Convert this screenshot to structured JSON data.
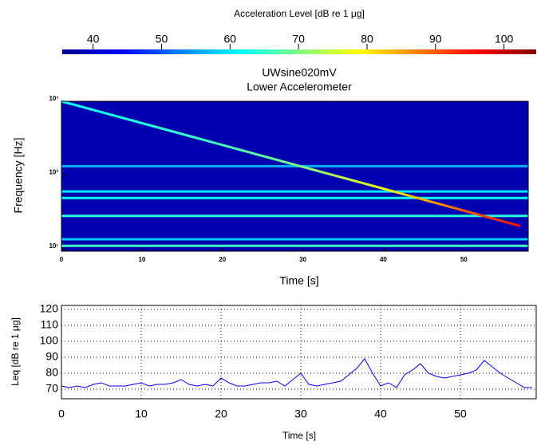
{
  "chart_data": [
    {
      "type": "colorbar",
      "title": "Acceleration Level  [dB re 1 μg]",
      "xlim": [
        35.5,
        104.7
      ],
      "xticks": [
        40,
        50,
        60,
        70,
        80,
        90,
        100
      ],
      "colormap": [
        "#00008f",
        "#0000ff",
        "#0080ff",
        "#00ffff",
        "#80ff80",
        "#ffff00",
        "#ff8000",
        "#ff0000",
        "#800000"
      ]
    },
    {
      "type": "spectrogram",
      "title": "UWsine020mV",
      "subtitle": "Lower Accelerometer",
      "x_label": "Time   [s]",
      "y_label": "Frequency   [Hz]",
      "xlim": [
        0,
        58
      ],
      "xticks": [
        0,
        10,
        20,
        30,
        40,
        50
      ],
      "ylim": [
        9.3,
        1000
      ],
      "log_y": true,
      "yticks": [
        {
          "value": 10,
          "label": "10¹"
        },
        {
          "value": 100,
          "label": "10²"
        },
        {
          "value": 1000,
          "label": "10³"
        }
      ],
      "background_level": 38,
      "sweep": {
        "x": [
          0,
          10,
          20,
          30,
          40,
          50,
          57
        ],
        "frequency": [
          1000,
          506,
          256,
          129,
          65.4,
          33,
          20.4
        ],
        "level": [
          62,
          64,
          66,
          70,
          78,
          90,
          95
        ]
      },
      "tones": {
        "frequency": [
          132,
          60,
          49,
          28,
          13.5,
          11
        ],
        "level": [
          56,
          60,
          62,
          64,
          58,
          66
        ]
      }
    },
    {
      "type": "line",
      "x_label": "Time   [s]",
      "y_label": "Leq  [dB re 1 μg]",
      "x": [
        0,
        1,
        2,
        3,
        4,
        5,
        6,
        7,
        8,
        9,
        10,
        11,
        12,
        13,
        14,
        15,
        16,
        17,
        18,
        19,
        20,
        21,
        22,
        23,
        24,
        25,
        26,
        27,
        28,
        29,
        30,
        31,
        32,
        33,
        34,
        35,
        36,
        37,
        38,
        39,
        40,
        41,
        42,
        43,
        44,
        45,
        46,
        47,
        48,
        49,
        50,
        51,
        52,
        53,
        54,
        55,
        56,
        57,
        58,
        59
      ],
      "series": [
        {
          "color": "#0000ff",
          "values": [
            72,
            71,
            72,
            71,
            73,
            74,
            72,
            72,
            72,
            73,
            74,
            72,
            73,
            73,
            74,
            76,
            73,
            72,
            73,
            72,
            77,
            74,
            72,
            72,
            73,
            74,
            74,
            75,
            72,
            76,
            80,
            73,
            72,
            73,
            74,
            75,
            79,
            83,
            89,
            80,
            72,
            74,
            71,
            79,
            82,
            86,
            80,
            78,
            77,
            78,
            79,
            80,
            82,
            88,
            84,
            80,
            77,
            74,
            71,
            71
          ]
        }
      ],
      "xlim": [
        0,
        59.5
      ],
      "xticks": [
        0,
        10,
        20,
        30,
        40,
        50
      ],
      "ylim": [
        64,
        122.5
      ],
      "yticks": [
        70,
        80,
        90,
        100,
        110,
        120
      ],
      "grid": true
    }
  ]
}
